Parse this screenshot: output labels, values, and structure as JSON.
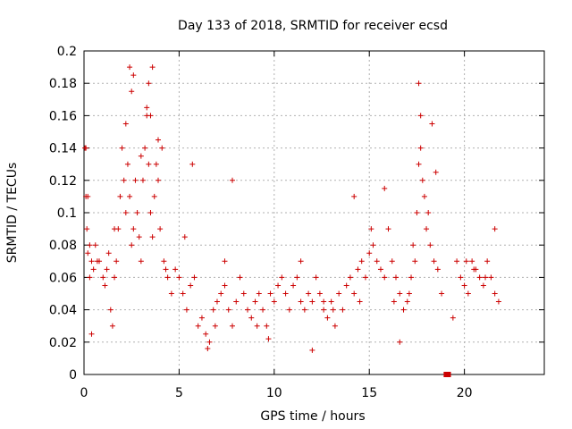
{
  "chart_data": {
    "type": "scatter",
    "title": "Day 133 of 2018, SRMTID for receiver ecsd",
    "xlabel": "GPS time / hours",
    "ylabel": "SRMTID / TECUs",
    "xlim": [
      0,
      24.2
    ],
    "ylim": [
      0,
      0.2
    ],
    "xticks": [
      0,
      5,
      10,
      15,
      20
    ],
    "xtick_labels": [
      "0",
      "5",
      "10",
      "15",
      "20"
    ],
    "yticks": [
      0,
      0.02,
      0.04,
      0.06,
      0.08,
      0.1,
      0.12,
      0.14,
      0.16,
      0.18,
      0.2
    ],
    "ytick_labels": [
      "0",
      "0.02",
      "0.04",
      "0.06",
      "0.08",
      "0.1",
      "0.12",
      "0.14",
      "0.16",
      "0.18",
      "0.2"
    ],
    "grid": true,
    "marker": "plus",
    "color": "#cc0000",
    "series": [
      {
        "name": "SRMTID",
        "x": [
          0.05,
          0.1,
          0.15,
          0.2,
          0.3,
          0.4,
          0.5,
          0.6,
          0.8,
          1.0,
          1.2,
          1.4,
          1.5,
          1.6,
          1.7,
          1.8,
          1.9,
          2.0,
          2.1,
          2.2,
          2.3,
          2.4,
          2.5,
          2.6,
          2.7,
          2.8,
          2.9,
          3.0,
          3.1,
          3.2,
          3.3,
          3.4,
          3.5,
          3.6,
          3.7,
          3.8,
          3.9,
          4.0,
          4.2,
          4.4,
          4.6,
          4.8,
          5.0,
          5.2,
          5.4,
          5.6,
          5.8,
          6.0,
          6.2,
          6.4,
          6.6,
          6.8,
          7.0,
          7.2,
          7.4,
          7.6,
          7.8,
          8.0,
          8.2,
          8.4,
          8.6,
          8.8,
          9.0,
          9.2,
          9.4,
          9.6,
          9.8,
          10.0,
          10.2,
          10.4,
          10.6,
          10.8,
          11.0,
          11.2,
          11.4,
          11.6,
          11.8,
          12.0,
          12.2,
          12.4,
          12.6,
          12.8,
          13.0,
          13.2,
          13.4,
          13.6,
          13.8,
          14.0,
          14.2,
          14.4,
          14.6,
          14.8,
          15.0,
          15.2,
          15.4,
          15.6,
          15.8,
          16.0,
          16.2,
          16.4,
          16.6,
          16.8,
          17.0,
          17.2,
          17.4,
          17.5,
          17.6,
          17.7,
          17.8,
          17.9,
          18.0,
          18.1,
          18.2,
          18.4,
          18.6,
          18.8,
          19.4,
          19.6,
          19.8,
          20.0,
          20.2,
          20.4,
          20.6,
          20.8,
          21.0,
          21.2,
          21.4,
          21.6,
          21.8,
          0.1,
          0.3,
          0.7,
          1.1,
          2.4,
          2.6,
          3.3,
          3.5,
          3.9,
          6.5,
          7.8,
          12.0,
          14.2,
          15.8,
          17.6,
          17.7,
          0.2,
          1.3,
          2.2,
          3.0,
          3.4,
          4.1,
          5.3,
          6.9,
          9.1,
          11.4,
          13.1,
          15.1,
          16.3,
          17.3,
          18.3,
          20.5,
          21.1,
          0.4,
          1.6,
          2.5,
          3.6,
          4.3,
          5.7,
          7.4,
          9.7,
          12.6,
          14.5,
          16.6,
          17.1,
          18.5,
          20.1,
          21.6
        ],
        "y": [
          0.14,
          0.11,
          0.09,
          0.075,
          0.06,
          0.07,
          0.065,
          0.08,
          0.07,
          0.06,
          0.065,
          0.04,
          0.03,
          0.06,
          0.07,
          0.09,
          0.11,
          0.14,
          0.12,
          0.1,
          0.13,
          0.11,
          0.08,
          0.09,
          0.12,
          0.1,
          0.085,
          0.07,
          0.12,
          0.14,
          0.16,
          0.13,
          0.1,
          0.085,
          0.11,
          0.13,
          0.12,
          0.09,
          0.07,
          0.06,
          0.05,
          0.065,
          0.06,
          0.05,
          0.04,
          0.055,
          0.06,
          0.03,
          0.035,
          0.025,
          0.02,
          0.04,
          0.045,
          0.05,
          0.055,
          0.04,
          0.03,
          0.045,
          0.06,
          0.05,
          0.04,
          0.035,
          0.045,
          0.05,
          0.04,
          0.03,
          0.05,
          0.045,
          0.055,
          0.06,
          0.05,
          0.04,
          0.055,
          0.06,
          0.045,
          0.04,
          0.05,
          0.045,
          0.06,
          0.05,
          0.04,
          0.035,
          0.045,
          0.03,
          0.05,
          0.04,
          0.055,
          0.06,
          0.05,
          0.065,
          0.07,
          0.06,
          0.075,
          0.08,
          0.07,
          0.065,
          0.06,
          0.09,
          0.07,
          0.06,
          0.05,
          0.04,
          0.045,
          0.06,
          0.07,
          0.1,
          0.13,
          0.14,
          0.12,
          0.11,
          0.09,
          0.1,
          0.08,
          0.07,
          0.065,
          0.05,
          0.035,
          0.07,
          0.06,
          0.055,
          0.05,
          0.07,
          0.065,
          0.06,
          0.055,
          0.07,
          0.06,
          0.05,
          0.045,
          0.14,
          0.08,
          0.07,
          0.055,
          0.19,
          0.185,
          0.165,
          0.16,
          0.145,
          0.016,
          0.12,
          0.015,
          0.11,
          0.115,
          0.18,
          0.16,
          0.11,
          0.075,
          0.155,
          0.135,
          0.18,
          0.14,
          0.085,
          0.03,
          0.03,
          0.07,
          0.04,
          0.09,
          0.045,
          0.08,
          0.155,
          0.065,
          0.06,
          0.025,
          0.09,
          0.175,
          0.19,
          0.065,
          0.13,
          0.07,
          0.022,
          0.045,
          0.045,
          0.02,
          0.05,
          0.125,
          0.07,
          0.09
        ]
      }
    ],
    "zero_points": {
      "x": [
        19.05,
        19.15
      ],
      "y": [
        0,
        0
      ]
    }
  }
}
